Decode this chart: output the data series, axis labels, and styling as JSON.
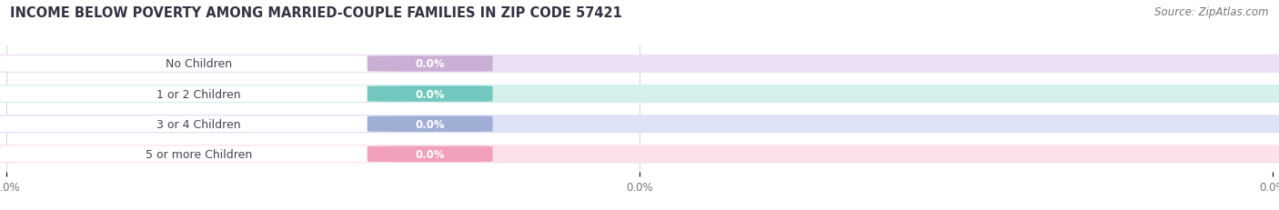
{
  "title": "INCOME BELOW POVERTY AMONG MARRIED-COUPLE FAMILIES IN ZIP CODE 57421",
  "source_text": "Source: ZipAtlas.com",
  "categories": [
    "No Children",
    "1 or 2 Children",
    "3 or 4 Children",
    "5 or more Children"
  ],
  "values": [
    0.0,
    0.0,
    0.0,
    0.0
  ],
  "bar_colors": [
    "#c9afd4",
    "#72c8be",
    "#a0aed6",
    "#f2a0bc"
  ],
  "bar_bg_colors": [
    "#eddff5",
    "#d6f0ee",
    "#dde3f5",
    "#fce0eb"
  ],
  "background_color": "#ffffff",
  "title_fontsize": 10.5,
  "source_fontsize": 8.5,
  "tick_fontsize": 8.5,
  "label_fontsize": 9,
  "value_fontsize": 8.5
}
